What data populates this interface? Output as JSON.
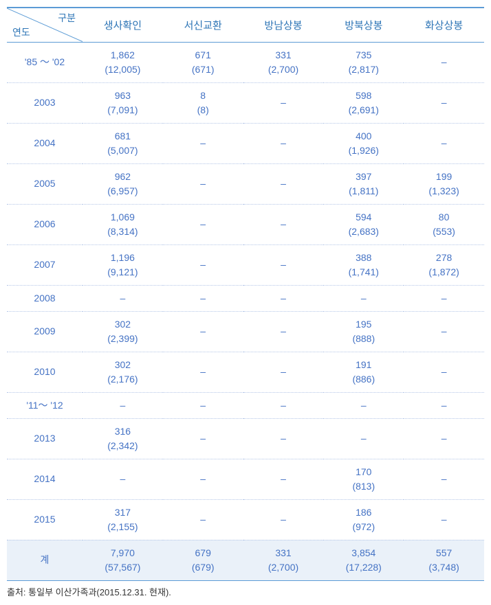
{
  "headers": {
    "diag_top": "구분",
    "diag_bottom": "연도",
    "cols": [
      "생사확인",
      "서신교환",
      "방남상봉",
      "방북상봉",
      "화상상봉"
    ]
  },
  "rows": [
    {
      "year": "'85 ～ '02",
      "cells": [
        {
          "main": "1,862",
          "sub": "(12,005)"
        },
        {
          "main": "671",
          "sub": "(671)"
        },
        {
          "main": "331",
          "sub": "(2,700)"
        },
        {
          "main": "735",
          "sub": "(2,817)"
        },
        {
          "main": "–",
          "sub": ""
        }
      ]
    },
    {
      "year": "2003",
      "cells": [
        {
          "main": "963",
          "sub": "(7,091)"
        },
        {
          "main": "8",
          "sub": "(8)"
        },
        {
          "main": "–",
          "sub": ""
        },
        {
          "main": "598",
          "sub": "(2,691)"
        },
        {
          "main": "–",
          "sub": ""
        }
      ]
    },
    {
      "year": "2004",
      "cells": [
        {
          "main": "681",
          "sub": "(5,007)"
        },
        {
          "main": "–",
          "sub": ""
        },
        {
          "main": "–",
          "sub": ""
        },
        {
          "main": "400",
          "sub": "(1,926)"
        },
        {
          "main": "–",
          "sub": ""
        }
      ]
    },
    {
      "year": "2005",
      "cells": [
        {
          "main": "962",
          "sub": "(6,957)"
        },
        {
          "main": "–",
          "sub": ""
        },
        {
          "main": "–",
          "sub": ""
        },
        {
          "main": "397",
          "sub": "(1,811)"
        },
        {
          "main": "199",
          "sub": "(1,323)"
        }
      ]
    },
    {
      "year": "2006",
      "cells": [
        {
          "main": "1,069",
          "sub": "(8,314)"
        },
        {
          "main": "–",
          "sub": ""
        },
        {
          "main": "–",
          "sub": ""
        },
        {
          "main": "594",
          "sub": "(2,683)"
        },
        {
          "main": "80",
          "sub": "(553)"
        }
      ]
    },
    {
      "year": "2007",
      "cells": [
        {
          "main": "1,196",
          "sub": "(9,121)"
        },
        {
          "main": "–",
          "sub": ""
        },
        {
          "main": "–",
          "sub": ""
        },
        {
          "main": "388",
          "sub": "(1,741)"
        },
        {
          "main": "278",
          "sub": "(1,872)"
        }
      ]
    },
    {
      "year": "2008",
      "cells": [
        {
          "main": "–",
          "sub": ""
        },
        {
          "main": "–",
          "sub": ""
        },
        {
          "main": "–",
          "sub": ""
        },
        {
          "main": "–",
          "sub": ""
        },
        {
          "main": "–",
          "sub": ""
        }
      ]
    },
    {
      "year": "2009",
      "cells": [
        {
          "main": "302",
          "sub": "(2,399)"
        },
        {
          "main": "–",
          "sub": ""
        },
        {
          "main": "–",
          "sub": ""
        },
        {
          "main": "195",
          "sub": "(888)"
        },
        {
          "main": "–",
          "sub": ""
        }
      ]
    },
    {
      "year": "2010",
      "cells": [
        {
          "main": "302",
          "sub": "(2,176)"
        },
        {
          "main": "–",
          "sub": ""
        },
        {
          "main": "–",
          "sub": ""
        },
        {
          "main": "191",
          "sub": "(886)"
        },
        {
          "main": "–",
          "sub": ""
        }
      ]
    },
    {
      "year": "'11～ '12",
      "cells": [
        {
          "main": "–",
          "sub": ""
        },
        {
          "main": "–",
          "sub": ""
        },
        {
          "main": "–",
          "sub": ""
        },
        {
          "main": "–",
          "sub": ""
        },
        {
          "main": "–",
          "sub": ""
        }
      ]
    },
    {
      "year": "2013",
      "cells": [
        {
          "main": "316",
          "sub": "(2,342)"
        },
        {
          "main": "–",
          "sub": ""
        },
        {
          "main": "–",
          "sub": ""
        },
        {
          "main": "–",
          "sub": ""
        },
        {
          "main": "–",
          "sub": ""
        }
      ]
    },
    {
      "year": "2014",
      "cells": [
        {
          "main": "–",
          "sub": ""
        },
        {
          "main": "–",
          "sub": ""
        },
        {
          "main": "–",
          "sub": ""
        },
        {
          "main": "170",
          "sub": "(813)"
        },
        {
          "main": "–",
          "sub": ""
        }
      ]
    },
    {
      "year": "2015",
      "cells": [
        {
          "main": "317",
          "sub": "(2,155)"
        },
        {
          "main": "–",
          "sub": ""
        },
        {
          "main": "–",
          "sub": ""
        },
        {
          "main": "186",
          "sub": "(972)"
        },
        {
          "main": "–",
          "sub": ""
        }
      ]
    }
  ],
  "total": {
    "label": "계",
    "cells": [
      {
        "main": "7,970",
        "sub": "(57,567)"
      },
      {
        "main": "679",
        "sub": "(679)"
      },
      {
        "main": "331",
        "sub": "(2,700)"
      },
      {
        "main": "3,854",
        "sub": "(17,228)"
      },
      {
        "main": "557",
        "sub": "(3,748)"
      }
    ]
  },
  "source": "출처: 통일부 이산가족과(2015.12.31. 현재).",
  "styles": {
    "header_color": "#2e75b6",
    "cell_color": "#4472c4",
    "border_color": "#5b9bd5",
    "row_border": "#b4c6e7",
    "total_bg": "#eaf1f9",
    "font_size_header": 15,
    "font_size_cell": 14,
    "font_size_source": 13,
    "diag_line_color": "#5b9bd5"
  }
}
